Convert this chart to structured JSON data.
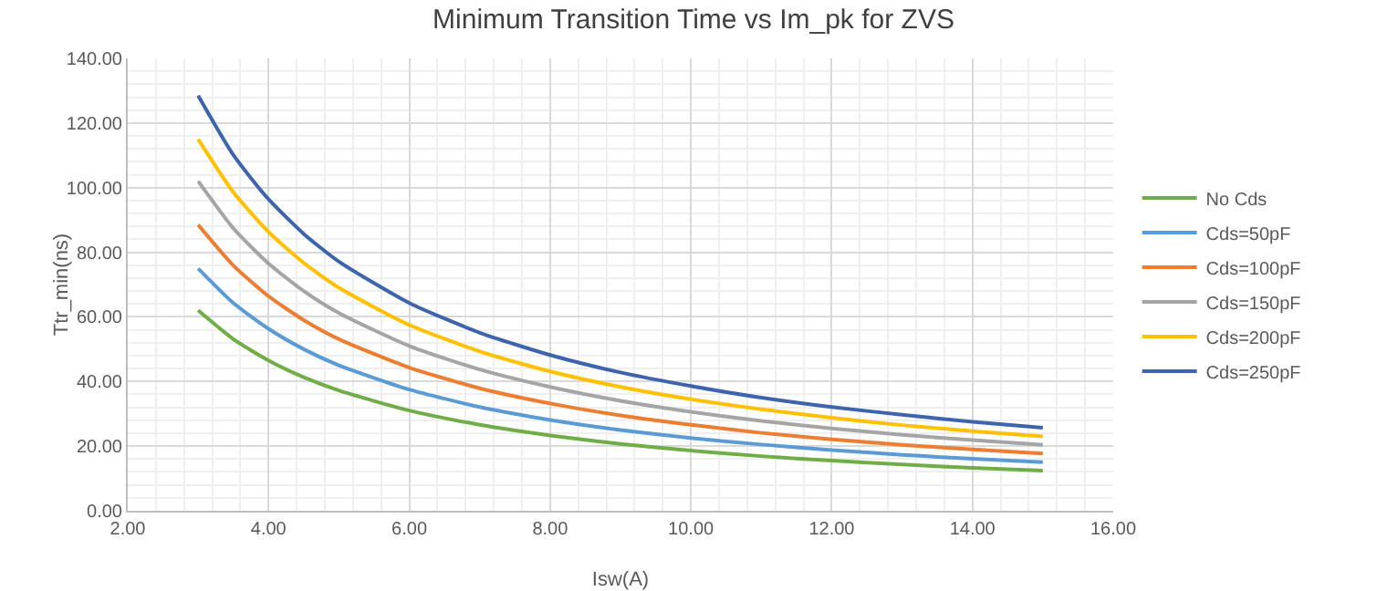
{
  "chart_data": {
    "type": "line",
    "title": "Minimum Transition Time vs Im_pk for ZVS",
    "xlabel": "Isw(A)",
    "ylabel": "Ttr_min(ns)",
    "x": [
      3,
      3.5,
      4,
      4.5,
      5,
      6,
      7,
      8,
      9,
      10,
      11,
      12,
      13,
      14,
      15
    ],
    "series": [
      {
        "name": "No Cds",
        "color": "#70ad47",
        "values": [
          62,
          53.1,
          46.5,
          41.3,
          37.2,
          31,
          26.6,
          23.3,
          20.7,
          18.6,
          16.9,
          15.5,
          14.3,
          13.3,
          12.4
        ]
      },
      {
        "name": "Cds=50pF",
        "color": "#5b9bd5",
        "values": [
          75,
          64.3,
          56.3,
          50,
          45,
          37.5,
          32.1,
          28.1,
          25,
          22.5,
          20.5,
          18.8,
          17.3,
          16.1,
          15
        ]
      },
      {
        "name": "Cds=100pF",
        "color": "#ed7d31",
        "values": [
          88.5,
          75.9,
          66.4,
          59,
          53.1,
          44.3,
          37.9,
          33.2,
          29.5,
          26.6,
          24.1,
          22.1,
          20.4,
          19,
          17.7
        ]
      },
      {
        "name": "Cds=150pF",
        "color": "#a5a5a5",
        "values": [
          102,
          87.4,
          76.5,
          68,
          61.2,
          51,
          43.7,
          38.3,
          34,
          30.6,
          27.8,
          25.5,
          23.5,
          21.9,
          20.4
        ]
      },
      {
        "name": "Cds=200pF",
        "color": "#ffc000",
        "values": [
          115,
          98.6,
          86.3,
          76.7,
          69,
          57.5,
          49.3,
          43.1,
          38.3,
          34.5,
          31.4,
          28.8,
          26.5,
          24.6,
          23
        ]
      },
      {
        "name": "Cds=250pF",
        "color": "#3e64ad",
        "values": [
          128.5,
          110.1,
          96.4,
          85.7,
          77.1,
          64.3,
          55.1,
          48.2,
          42.8,
          38.6,
          35,
          32.1,
          29.7,
          27.5,
          25.7
        ]
      }
    ],
    "xlim": [
      2,
      16
    ],
    "xticks": [
      {
        "value": 2,
        "label": "2.00"
      },
      {
        "value": 4,
        "label": "4.00"
      },
      {
        "value": 6,
        "label": "6.00"
      },
      {
        "value": 8,
        "label": "8.00"
      },
      {
        "value": 10,
        "label": "10.00"
      },
      {
        "value": 12,
        "label": "12.00"
      },
      {
        "value": 14,
        "label": "14.00"
      },
      {
        "value": 16,
        "label": "16.00"
      }
    ],
    "ylim": [
      0,
      140
    ],
    "yticks": [
      {
        "value": 0,
        "label": "0.00"
      },
      {
        "value": 20,
        "label": "20.00"
      },
      {
        "value": 40,
        "label": "40.00"
      },
      {
        "value": 60,
        "label": "60.00"
      },
      {
        "value": 80,
        "label": "80.00"
      },
      {
        "value": 100,
        "label": "100.00"
      },
      {
        "value": 120,
        "label": "120.00"
      },
      {
        "value": 140,
        "label": "140.00"
      }
    ],
    "grid": true,
    "legend": "right",
    "marker": "none",
    "line_style": "solid"
  }
}
